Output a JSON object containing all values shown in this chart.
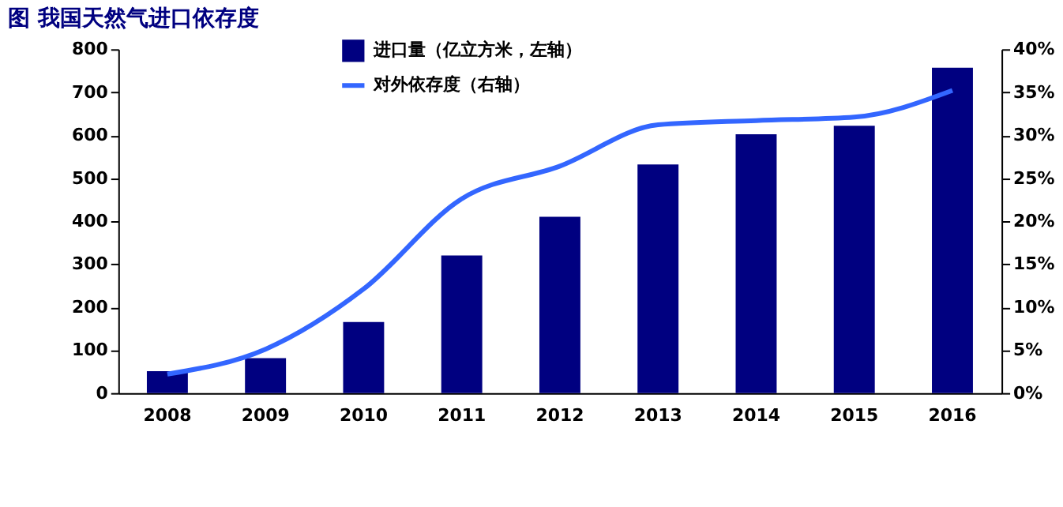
{
  "chart_data": {
    "type": "bar",
    "title": "图 我国天然气进口依存度",
    "categories": [
      "2008",
      "2009",
      "2010",
      "2011",
      "2012",
      "2013",
      "2014",
      "2015",
      "2016"
    ],
    "series": [
      {
        "name": "进口量（亿立方米，左轴）",
        "color": "#000080",
        "values": [
          51,
          81,
          165,
          320,
          410,
          532,
          602,
          622,
          757
        ]
      },
      {
        "name": "对外依存度（右轴）",
        "type": "line",
        "axis": "y2",
        "color": "#3366ff",
        "values": [
          2.2,
          5.1,
          12.1,
          22.6,
          26.4,
          31.2,
          31.7,
          32.1,
          35.2
        ]
      }
    ],
    "ylim": [
      0,
      800
    ],
    "yticks": [
      0,
      100,
      200,
      300,
      400,
      500,
      600,
      700,
      800
    ],
    "y2lim": [
      0,
      40
    ],
    "y2ticks": [
      {
        "value": 0,
        "label": "0%"
      },
      {
        "value": 5,
        "label": "5%"
      },
      {
        "value": 10,
        "label": "10%"
      },
      {
        "value": 15,
        "label": "15%"
      },
      {
        "value": 20,
        "label": "20%"
      },
      {
        "value": 25,
        "label": "25%"
      },
      {
        "value": 30,
        "label": "30%"
      },
      {
        "value": 35,
        "label": "35%"
      },
      {
        "value": 40,
        "label": "40%"
      }
    ],
    "grid": false,
    "legend": "top",
    "line_style": "solid",
    "marker": "none"
  }
}
